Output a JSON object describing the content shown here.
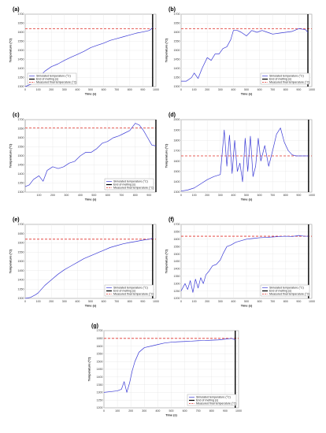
{
  "figure": {
    "legend_entries": {
      "simulated": "Simulated temperature (°C)",
      "melting": "End of melting (s)",
      "measured": "Measured final temperature (°C)"
    },
    "colors": {
      "simulated": "#3b3bd6",
      "melting": "#000000",
      "measured": "#e0302a",
      "grid": "#e6e6e6",
      "axis": "#555555"
    }
  },
  "chart_data": [
    {
      "panel": "(a)",
      "type": "line",
      "xlabel": "Time (s)",
      "ylabel": "Temperature (°C)",
      "xlim": [
        0,
        1000
      ],
      "ylim": [
        1300,
        1700
      ],
      "xticks": [
        0,
        100,
        200,
        300,
        400,
        500,
        600,
        700,
        800,
        900,
        1000
      ],
      "yticks": [
        1300,
        1350,
        1400,
        1450,
        1500,
        1550,
        1600,
        1650,
        1700
      ],
      "measured_final": 1620,
      "end_of_melting": 975,
      "legend": "bottom-left",
      "series": [
        {
          "name": "Simulated temperature (°C)",
          "x": [
            0,
            50,
            100,
            150,
            200,
            250,
            300,
            350,
            400,
            450,
            500,
            550,
            600,
            650,
            700,
            750,
            800,
            850,
            900,
            950,
            975
          ],
          "y": [
            1300,
            1315,
            1345,
            1385,
            1410,
            1425,
            1445,
            1462,
            1478,
            1495,
            1515,
            1528,
            1540,
            1555,
            1565,
            1575,
            1585,
            1595,
            1602,
            1610,
            1625
          ]
        }
      ]
    },
    {
      "panel": "(b)",
      "type": "line",
      "xlabel": "Time (s)",
      "ylabel": "Temperature (°C)",
      "xlim": [
        0,
        1000
      ],
      "ylim": [
        1300,
        1700
      ],
      "xticks": [
        0,
        100,
        200,
        300,
        400,
        500,
        600,
        700,
        800,
        900,
        1000
      ],
      "yticks": [
        1300,
        1350,
        1400,
        1450,
        1500,
        1550,
        1600,
        1650,
        1700
      ],
      "measured_final": 1620,
      "end_of_melting": 970,
      "legend": "bottom-right",
      "series": [
        {
          "name": "Simulated temperature (°C)",
          "x": [
            0,
            40,
            80,
            100,
            130,
            160,
            200,
            230,
            260,
            290,
            320,
            350,
            380,
            400,
            430,
            460,
            500,
            540,
            580,
            620,
            660,
            700,
            750,
            800,
            850,
            900,
            950,
            970
          ],
          "y": [
            1330,
            1330,
            1350,
            1375,
            1345,
            1400,
            1460,
            1445,
            1480,
            1480,
            1510,
            1520,
            1560,
            1610,
            1610,
            1600,
            1580,
            1610,
            1600,
            1610,
            1600,
            1590,
            1595,
            1600,
            1605,
            1620,
            1615,
            1600
          ]
        }
      ]
    },
    {
      "panel": "(c)",
      "type": "line",
      "xlabel": "Time (s)",
      "ylabel": "Temperature (°C)",
      "xlim": [
        0,
        950
      ],
      "ylim": [
        1300,
        1700
      ],
      "xticks": [
        100,
        200,
        300,
        400,
        500,
        600,
        700,
        800,
        900
      ],
      "yticks": [
        1300,
        1350,
        1400,
        1450,
        1500,
        1550,
        1600,
        1650,
        1700
      ],
      "measured_final": 1655,
      "end_of_melting": 950,
      "legend": "bottom-right",
      "series": [
        {
          "name": "Simulated temperature (°C)",
          "x": [
            0,
            30,
            60,
            100,
            130,
            160,
            200,
            240,
            280,
            320,
            360,
            400,
            440,
            480,
            520,
            560,
            600,
            640,
            680,
            720,
            760,
            800,
            830,
            860,
            890,
            920,
            950
          ],
          "y": [
            1330,
            1340,
            1370,
            1390,
            1360,
            1420,
            1440,
            1430,
            1440,
            1460,
            1470,
            1500,
            1520,
            1520,
            1540,
            1570,
            1580,
            1600,
            1610,
            1625,
            1640,
            1680,
            1670,
            1640,
            1600,
            1560,
            1555
          ]
        }
      ]
    },
    {
      "panel": "(d)",
      "type": "line",
      "xlabel": "Time (s)",
      "ylabel": "Temperature (°C)",
      "xlim": [
        0,
        1000
      ],
      "ylim": [
        1300,
        2000
      ],
      "xticks": [
        0,
        100,
        200,
        300,
        400,
        500,
        600,
        700,
        800,
        900,
        1000
      ],
      "yticks": [
        1300,
        1400,
        1500,
        1600,
        1700,
        1800,
        1900,
        2000
      ],
      "measured_final": 1650,
      "end_of_melting": 975,
      "legend": "none",
      "series": [
        {
          "name": "Simulated temperature (°C)",
          "x": [
            0,
            50,
            100,
            150,
            200,
            250,
            300,
            330,
            350,
            370,
            390,
            410,
            430,
            450,
            470,
            490,
            510,
            530,
            550,
            570,
            590,
            610,
            640,
            670,
            700,
            730,
            760,
            790,
            820,
            850,
            880,
            910,
            940,
            975
          ],
          "y": [
            1310,
            1320,
            1340,
            1380,
            1420,
            1450,
            1470,
            1900,
            1550,
            1850,
            1480,
            1800,
            1500,
            1580,
            1400,
            1820,
            1500,
            1840,
            1450,
            1550,
            1820,
            1600,
            1750,
            1550,
            1700,
            1860,
            1920,
            1780,
            1700,
            1660,
            1650,
            1650,
            1650,
            1650
          ]
        }
      ]
    },
    {
      "panel": "(e)",
      "type": "line",
      "xlabel": "Time (s)",
      "ylabel": "Temperature (°C)",
      "xlim": [
        0,
        1000
      ],
      "ylim": [
        1300,
        1700
      ],
      "xticks": [
        0,
        100,
        200,
        300,
        400,
        500,
        600,
        700,
        800,
        900,
        1000
      ],
      "yticks": [
        1300,
        1350,
        1400,
        1450,
        1500,
        1550,
        1600,
        1650,
        1700
      ],
      "measured_final": 1620,
      "end_of_melting": 975,
      "legend": "bottom-right",
      "series": [
        {
          "name": "Simulated temperature (°C)",
          "x": [
            0,
            40,
            80,
            100,
            150,
            200,
            250,
            300,
            350,
            400,
            450,
            500,
            550,
            600,
            650,
            700,
            750,
            800,
            850,
            900,
            950,
            975
          ],
          "y": [
            1300,
            1305,
            1320,
            1330,
            1370,
            1400,
            1430,
            1455,
            1475,
            1495,
            1515,
            1530,
            1545,
            1560,
            1575,
            1585,
            1595,
            1602,
            1608,
            1615,
            1620,
            1625
          ]
        }
      ]
    },
    {
      "panel": "(f)",
      "type": "line",
      "xlabel": "Time (s)",
      "ylabel": "Temperature (°C)",
      "xlim": [
        0,
        1000
      ],
      "ylim": [
        1200,
        1700
      ],
      "xticks": [
        0,
        100,
        200,
        300,
        400,
        500,
        600,
        700,
        800,
        900,
        1000
      ],
      "yticks": [
        1200,
        1250,
        1300,
        1350,
        1400,
        1450,
        1500,
        1550,
        1600,
        1650,
        1700
      ],
      "measured_final": 1620,
      "end_of_melting": 975,
      "legend": "bottom-right",
      "series": [
        {
          "name": "Simulated temperature (°C)",
          "x": [
            0,
            30,
            50,
            70,
            90,
            110,
            130,
            150,
            170,
            190,
            210,
            240,
            270,
            300,
            320,
            350,
            380,
            420,
            460,
            500,
            550,
            600,
            650,
            700,
            750,
            800,
            850,
            900,
            940,
            975
          ],
          "y": [
            1250,
            1300,
            1260,
            1320,
            1240,
            1330,
            1270,
            1340,
            1300,
            1360,
            1380,
            1420,
            1430,
            1460,
            1500,
            1550,
            1560,
            1580,
            1590,
            1600,
            1605,
            1610,
            1612,
            1615,
            1618,
            1620,
            1618,
            1625,
            1620,
            1620
          ]
        }
      ]
    },
    {
      "panel": "(g)",
      "type": "line",
      "xlabel": "Time (s)",
      "ylabel": "Temperature (°C)",
      "xlim": [
        0,
        1000
      ],
      "ylim": [
        1200,
        1700
      ],
      "xticks": [
        0,
        100,
        200,
        300,
        400,
        500,
        600,
        700,
        800,
        900,
        1000
      ],
      "yticks": [
        1200,
        1250,
        1300,
        1350,
        1400,
        1450,
        1500,
        1550,
        1600,
        1650,
        1700
      ],
      "measured_final": 1650,
      "end_of_melting": 975,
      "legend": "bottom-right",
      "series": [
        {
          "name": "Simulated temperature (°C)",
          "x": [
            0,
            50,
            100,
            130,
            150,
            170,
            190,
            210,
            230,
            260,
            300,
            350,
            400,
            450,
            500,
            550,
            600,
            650,
            700,
            750,
            800,
            850,
            900,
            950,
            975
          ],
          "y": [
            1300,
            1305,
            1310,
            1320,
            1370,
            1300,
            1360,
            1440,
            1500,
            1560,
            1590,
            1600,
            1610,
            1620,
            1625,
            1628,
            1630,
            1632,
            1635,
            1636,
            1638,
            1640,
            1645,
            1650,
            1640
          ]
        }
      ]
    }
  ]
}
